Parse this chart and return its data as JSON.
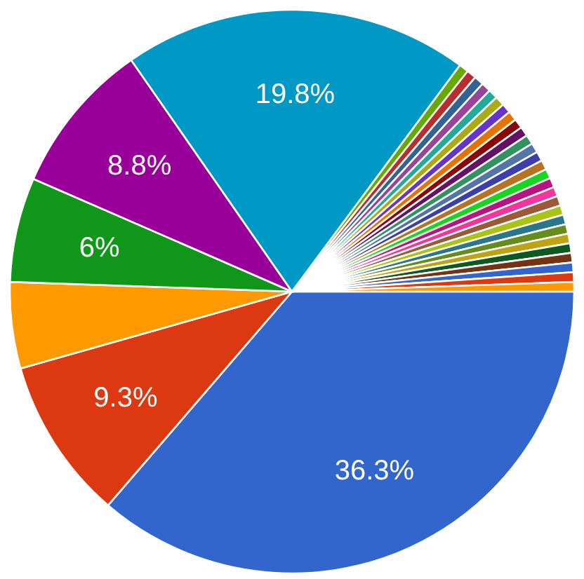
{
  "chart_data": {
    "type": "pie",
    "categories": [
      null,
      null,
      null,
      null,
      null,
      null,
      null,
      null,
      null,
      null,
      null,
      null,
      null,
      null,
      null,
      null,
      null,
      null,
      null,
      null,
      null,
      null,
      null,
      null,
      null,
      null,
      null,
      null,
      null,
      null,
      null,
      null,
      null
    ],
    "values": [
      36.3,
      9.3,
      4.95,
      6,
      8.8,
      19.8,
      0.55,
      0.55,
      0.55,
      0.55,
      0.55,
      0.55,
      0.55,
      0.55,
      0.55,
      0.55,
      0.55,
      0.55,
      0.55,
      0.55,
      0.55,
      0.55,
      0.55,
      0.55,
      0.55,
      0.55,
      0.55,
      0.55,
      0.55,
      0.55,
      0.55,
      0.55,
      0.55
    ],
    "value_labels": [
      "36.3%",
      "9.3%",
      null,
      "6%",
      "8.8%",
      "19.8%",
      null,
      null,
      null,
      null,
      null,
      null,
      null,
      null,
      null,
      null,
      null,
      null,
      null,
      null,
      null,
      null,
      null,
      null,
      null,
      null,
      null,
      null,
      null,
      null,
      null,
      null,
      null
    ],
    "colors": [
      "#3366cc",
      "#dc3912",
      "#ff9900",
      "#109618",
      "#990099",
      "#0099c6",
      "#66aa00",
      "#b82e2e",
      "#316395",
      "#994499",
      "#22aa99",
      "#aaaa11",
      "#6633cc",
      "#e67300",
      "#8b0707",
      "#651067",
      "#329262",
      "#5574a6",
      "#3b3eac",
      "#b77322",
      "#16d620",
      "#b91383",
      "#f4359e",
      "#9c5935",
      "#a9c413",
      "#2a778d",
      "#668d1c",
      "#bea413",
      "#0c5922",
      "#743411",
      "#3366cc",
      "#dc3912",
      "#ff9900"
    ]
  }
}
